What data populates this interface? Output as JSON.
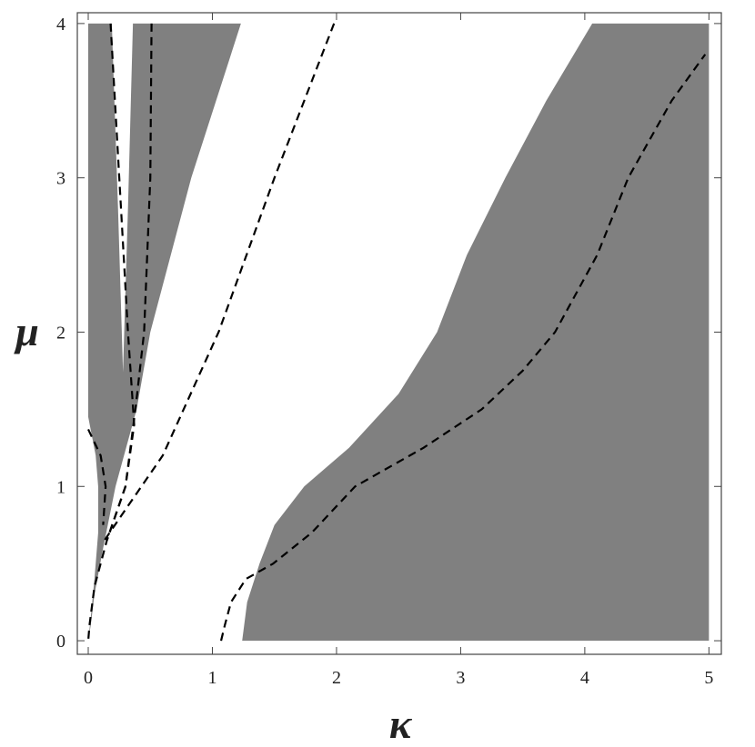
{
  "chart_data": {
    "type": "region",
    "x_label": "κ",
    "y_label": "μ",
    "xlim": [
      -0.088,
      5.1
    ],
    "ylim": [
      -0.088,
      4.07
    ],
    "xticks": [
      0,
      1,
      2,
      3,
      4,
      5
    ],
    "yticks": [
      0,
      1,
      2,
      3,
      4
    ],
    "regions": [
      {
        "color": "#808080",
        "x": [
          0,
          0.19,
          0.24,
          0.28,
          0.32,
          0.36,
          1.23,
          0.83,
          0.5,
          0.39,
          0.22,
          0.12,
          0.05,
          0.02,
          0,
          0.02,
          0.05,
          0.08,
          0.08,
          0.06,
          0
        ],
        "y": [
          4,
          4,
          2.8,
          1.74,
          2.8,
          4,
          4,
          3,
          2,
          1.5,
          1,
          0.6,
          0.3,
          0.1,
          0,
          0.15,
          0.4,
          0.7,
          1,
          1.2,
          1.45
        ]
      },
      {
        "color": "#808080",
        "x": [
          1.24,
          5,
          5,
          4.06,
          3.69,
          3.36,
          3.05,
          2.81,
          2.5,
          2.1,
          1.74,
          1.5,
          1.38,
          1.28
        ],
        "y": [
          0,
          0,
          4,
          4,
          3.5,
          3,
          2.5,
          2,
          1.6,
          1.25,
          1,
          0.75,
          0.5,
          0.25
        ]
      }
    ],
    "curves": [
      {
        "color": "#000000",
        "dash": true,
        "x": [
          0.18,
          0.25,
          0.32,
          0.37,
          0.3,
          0.15,
          0.05,
          0.01,
          0
        ],
        "y": [
          4,
          3,
          2,
          1.4,
          1,
          0.65,
          0.35,
          0.1,
          0
        ]
      },
      {
        "color": "#000000",
        "dash": true,
        "x": [
          0.51,
          0.5,
          0.45,
          0.38,
          0.3,
          0.15
        ],
        "y": [
          4,
          3,
          2,
          1.5,
          1,
          0.65
        ]
      },
      {
        "color": "#000000",
        "dash": true,
        "x": [
          1.98,
          1.5,
          1.05,
          0.6,
          0.3,
          0.13
        ],
        "y": [
          4,
          3,
          2,
          1.2,
          0.85,
          0.65
        ]
      },
      {
        "color": "#000000",
        "dash": true,
        "x": [
          0,
          0.1,
          0.14,
          0.12
        ],
        "y": [
          1.37,
          1.2,
          1,
          0.75
        ]
      },
      {
        "color": "#000000",
        "dash": true,
        "x": [
          1.07,
          1.1,
          1.15,
          1.27,
          1.49,
          1.8,
          2.15,
          2.7,
          3.17,
          3.5,
          3.76,
          4.1,
          4.35,
          4.7,
          4.97
        ],
        "y": [
          0,
          0.1,
          0.25,
          0.4,
          0.5,
          0.7,
          1,
          1.25,
          1.5,
          1.75,
          2,
          2.5,
          3,
          3.5,
          3.8
        ]
      }
    ]
  }
}
